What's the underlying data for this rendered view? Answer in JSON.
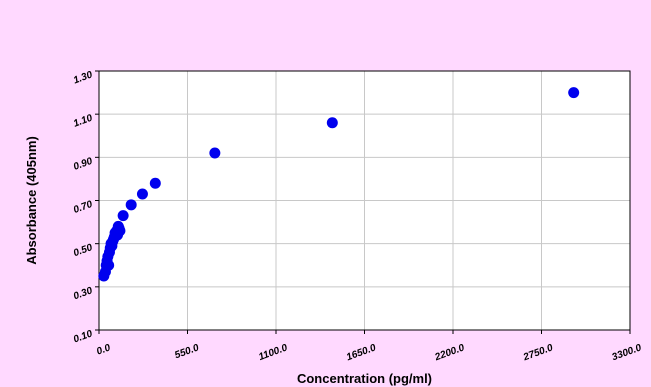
{
  "chart_data": {
    "type": "scatter",
    "title": "",
    "xlabel": "Concentration (pg/ml)",
    "ylabel": "Absorbance (405nm)",
    "xlim": [
      0,
      3300
    ],
    "ylim": [
      0.1,
      1.3
    ],
    "x_ticks": [
      "0.0",
      "550.0",
      "1100.0",
      "1650.0",
      "2200.0",
      "2750.0",
      "3300.0"
    ],
    "y_ticks": [
      "0.10",
      "0.30",
      "0.50",
      "0.70",
      "0.90",
      "1.10",
      "1.30"
    ],
    "grid": true,
    "point_color": "#0000ee",
    "series": [
      {
        "x": [
          30,
          40,
          45,
          50,
          55,
          60,
          65,
          70,
          75,
          80,
          85,
          90,
          95,
          100,
          110,
          115,
          120,
          125,
          130,
          150,
          200,
          270,
          350,
          720,
          1450,
          2950
        ],
        "y": [
          0.35,
          0.37,
          0.4,
          0.42,
          0.44,
          0.4,
          0.46,
          0.48,
          0.5,
          0.49,
          0.51,
          0.52,
          0.53,
          0.55,
          0.56,
          0.54,
          0.58,
          0.57,
          0.56,
          0.63,
          0.68,
          0.73,
          0.78,
          0.92,
          1.06,
          1.2
        ]
      }
    ]
  }
}
